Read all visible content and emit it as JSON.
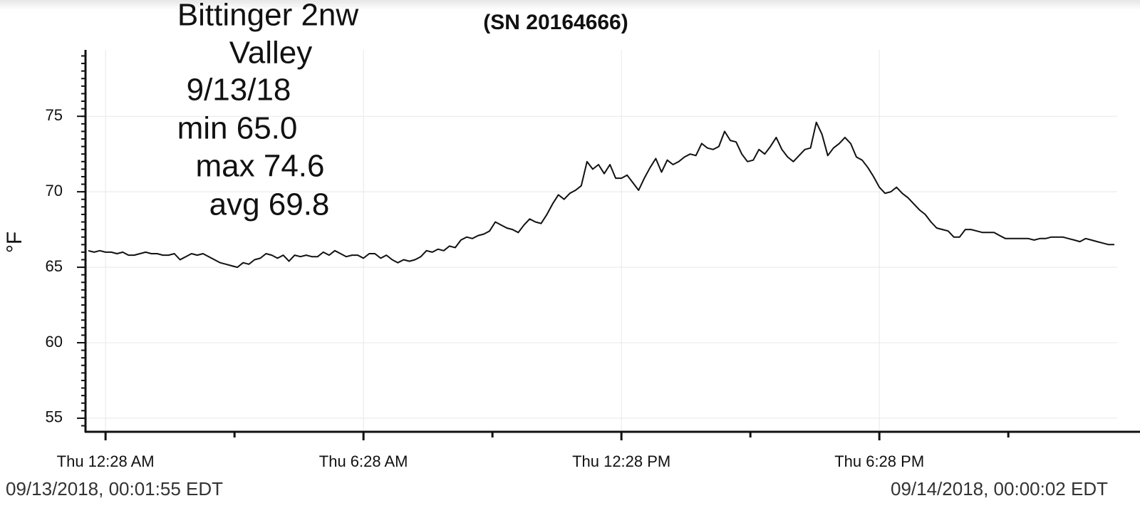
{
  "chart_data": {
    "type": "line",
    "title": "(SN 20164666)",
    "annotations": [
      "Bittinger 2nw",
      "Valley",
      "9/13/18",
      "min 65.0",
      "max 74.6",
      "avg 69.8"
    ],
    "y_label": "°F",
    "start_time_label": "09/13/2018, 00:01:55 EDT",
    "end_time_label": "09/14/2018, 00:00:02 EDT",
    "color": "#111111",
    "grid": true,
    "ylim": [
      54.1,
      79.4
    ],
    "yticks": [
      55,
      60,
      65,
      70,
      75
    ],
    "categories": [
      null,
      null,
      null,
      "Thu 12:28 AM",
      null,
      null,
      null,
      null,
      null,
      null,
      null,
      null,
      null,
      null,
      null,
      null,
      null,
      null,
      null,
      null,
      null,
      null,
      null,
      null,
      null,
      null,
      null,
      null,
      null,
      null,
      null,
      null,
      null,
      null,
      null,
      null,
      null,
      null,
      null,
      null,
      null,
      null,
      null,
      null,
      null,
      null,
      null,
      null,
      "Thu 6:28 AM",
      null,
      null,
      null,
      null,
      null,
      null,
      null,
      null,
      null,
      null,
      null,
      null,
      null,
      null,
      null,
      null,
      null,
      null,
      null,
      null,
      null,
      null,
      null,
      null,
      null,
      null,
      null,
      null,
      null,
      null,
      null,
      null,
      null,
      null,
      null,
      null,
      null,
      null,
      null,
      null,
      null,
      null,
      null,
      null,
      "Thu 12:28 PM",
      null,
      null,
      null,
      null,
      null,
      null,
      null,
      null,
      null,
      null,
      null,
      null,
      null,
      null,
      null,
      null,
      null,
      null,
      null,
      null,
      null,
      null,
      null,
      null,
      null,
      null,
      null,
      null,
      null,
      null,
      null,
      null,
      null,
      null,
      null,
      null,
      null,
      null,
      null,
      null,
      null,
      null,
      null,
      null,
      "Thu 6:28 PM",
      null,
      null,
      null,
      null,
      null,
      null,
      null,
      null,
      null,
      null,
      null,
      null,
      null,
      null,
      null,
      null,
      null,
      null,
      null,
      null,
      null,
      null,
      null,
      null,
      null,
      null,
      null,
      null,
      null,
      null,
      null,
      null,
      null,
      null,
      null,
      null,
      null,
      null,
      null,
      null,
      null
    ],
    "values": [
      66.1,
      66.0,
      66.1,
      66.0,
      66.0,
      65.9,
      66.0,
      65.8,
      65.8,
      65.9,
      66.0,
      65.9,
      65.9,
      65.8,
      65.8,
      65.9,
      65.5,
      65.7,
      65.9,
      65.8,
      65.9,
      65.7,
      65.5,
      65.3,
      65.2,
      65.1,
      65.0,
      65.3,
      65.2,
      65.5,
      65.6,
      65.9,
      65.8,
      65.6,
      65.8,
      65.4,
      65.8,
      65.7,
      65.8,
      65.7,
      65.7,
      66.0,
      65.8,
      66.1,
      65.9,
      65.7,
      65.8,
      65.8,
      65.6,
      65.9,
      65.9,
      65.6,
      65.8,
      65.5,
      65.3,
      65.5,
      65.4,
      65.5,
      65.7,
      66.1,
      66.0,
      66.2,
      66.1,
      66.4,
      66.3,
      66.8,
      67.0,
      66.9,
      67.1,
      67.2,
      67.4,
      68.0,
      67.8,
      67.6,
      67.5,
      67.3,
      67.8,
      68.2,
      68.0,
      67.9,
      68.5,
      69.2,
      69.8,
      69.5,
      69.9,
      70.1,
      70.4,
      72.0,
      71.5,
      71.8,
      71.2,
      71.8,
      70.9,
      70.9,
      71.1,
      70.6,
      70.1,
      70.9,
      71.6,
      72.2,
      71.3,
      72.1,
      71.8,
      72.0,
      72.3,
      72.5,
      72.4,
      73.2,
      72.9,
      72.8,
      73.0,
      74.0,
      73.4,
      73.3,
      72.5,
      72.0,
      72.1,
      72.8,
      72.5,
      73.0,
      73.6,
      72.8,
      72.3,
      72.0,
      72.4,
      72.8,
      72.9,
      74.6,
      73.8,
      72.4,
      72.9,
      73.2,
      73.6,
      73.2,
      72.3,
      72.1,
      71.6,
      71.0,
      70.3,
      69.9,
      70.0,
      70.3,
      69.9,
      69.6,
      69.2,
      68.8,
      68.5,
      68.0,
      67.6,
      67.5,
      67.4,
      67.0,
      67.0,
      67.5,
      67.5,
      67.4,
      67.3,
      67.3,
      67.3,
      67.1,
      66.9,
      66.9,
      66.9,
      66.9,
      66.9,
      66.8,
      66.9,
      66.9,
      67.0,
      67.0,
      67.0,
      66.9,
      66.8,
      66.7,
      66.9,
      66.8,
      66.7,
      66.6,
      66.5,
      66.5
    ]
  }
}
